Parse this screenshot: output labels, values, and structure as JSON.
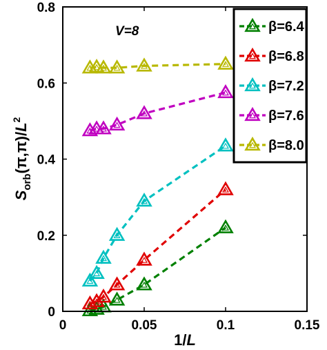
{
  "chart_data": {
    "type": "line",
    "annotation": "V=8",
    "xlabel": "1/L",
    "ylabel": "S_orb(π,π)/L²",
    "xlim": [
      0,
      0.15
    ],
    "ylim": [
      0,
      0.8
    ],
    "x_ticks": [
      "0",
      "0.05",
      "0.1",
      "0.15"
    ],
    "y_ticks": [
      "0",
      "0.2",
      "0.4",
      "0.6",
      "0.8"
    ],
    "grid": false,
    "legend_position": "top-right",
    "marker": "triangle",
    "line_style": "dashed",
    "series": [
      {
        "name": "β=6.4",
        "color": "#008000",
        "x": [
          0.0167,
          0.0208,
          0.025,
          0.0333,
          0.05,
          0.1
        ],
        "y": [
          0.002,
          0.006,
          0.012,
          0.03,
          0.07,
          0.22
        ]
      },
      {
        "name": "β=6.8",
        "color": "#e00000",
        "x": [
          0.0167,
          0.0208,
          0.025,
          0.0333,
          0.05,
          0.1
        ],
        "y": [
          0.02,
          0.026,
          0.038,
          0.07,
          0.135,
          0.32
        ]
      },
      {
        "name": "β=7.2",
        "color": "#00c0c0",
        "x": [
          0.0167,
          0.0208,
          0.025,
          0.0333,
          0.05,
          0.1
        ],
        "y": [
          0.08,
          0.1,
          0.14,
          0.2,
          0.29,
          0.435
        ]
      },
      {
        "name": "β=7.6",
        "color": "#c000c0",
        "x": [
          0.0167,
          0.0208,
          0.025,
          0.0333,
          0.05,
          0.1
        ],
        "y": [
          0.475,
          0.48,
          0.48,
          0.49,
          0.52,
          0.575
        ]
      },
      {
        "name": "β=8.0",
        "color": "#b8b800",
        "x": [
          0.0167,
          0.0208,
          0.025,
          0.0333,
          0.05,
          0.1
        ],
        "y": [
          0.64,
          0.642,
          0.64,
          0.64,
          0.645,
          0.65
        ]
      }
    ]
  }
}
